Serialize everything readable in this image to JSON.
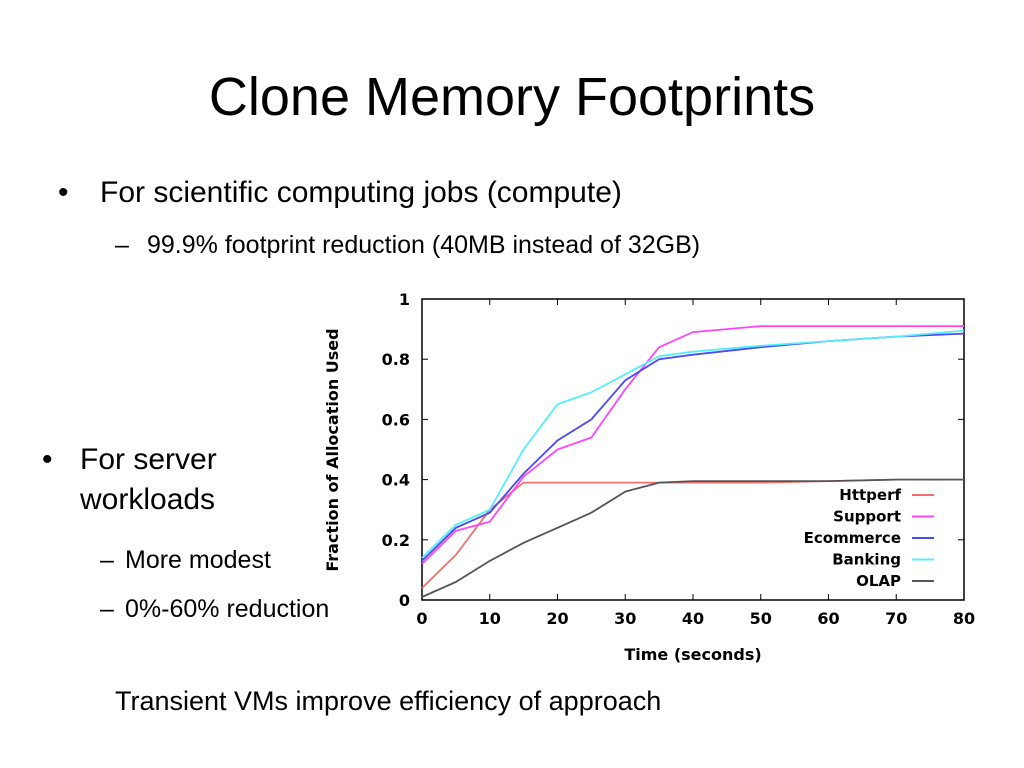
{
  "slide": {
    "title": "Clone Memory Footprints",
    "bullet1": "For scientific computing jobs (compute)",
    "sub1": "99.9% footprint reduction (40MB instead of 32GB)",
    "bullet2": "For server workloads",
    "sub2": "More modest",
    "sub3": "0%-60% reduction",
    "footer": "Transient VMs improve efficiency of approach",
    "bullet_glyph": "•",
    "dash_glyph": "–"
  },
  "chart_data": {
    "type": "line",
    "title": "",
    "xlabel": "Time (seconds)",
    "ylabel": "Fraction of Allocation Used",
    "xlim": [
      0,
      80
    ],
    "ylim": [
      0,
      1
    ],
    "xticks": [
      "0",
      "10",
      "20",
      "30",
      "40",
      "50",
      "60",
      "70",
      "80"
    ],
    "yticks": [
      "0",
      "0.2",
      "0.4",
      "0.6",
      "0.8",
      "1"
    ],
    "legend_position": "bottom-right",
    "grid": false,
    "series": [
      {
        "name": "Httperf",
        "color": "#f07070",
        "points": [
          [
            0,
            0.04
          ],
          [
            5,
            0.15
          ],
          [
            10,
            0.3
          ],
          [
            15,
            0.39
          ],
          [
            20,
            0.39
          ],
          [
            30,
            0.39
          ],
          [
            40,
            0.39
          ],
          [
            50,
            0.39
          ],
          [
            60,
            0.395
          ],
          [
            70,
            0.4
          ],
          [
            80,
            0.4
          ]
        ]
      },
      {
        "name": "Support",
        "color": "#ff44ff",
        "points": [
          [
            0,
            0.12
          ],
          [
            5,
            0.23
          ],
          [
            10,
            0.26
          ],
          [
            15,
            0.41
          ],
          [
            20,
            0.5
          ],
          [
            25,
            0.54
          ],
          [
            30,
            0.7
          ],
          [
            35,
            0.84
          ],
          [
            40,
            0.89
          ],
          [
            50,
            0.91
          ],
          [
            60,
            0.91
          ],
          [
            70,
            0.91
          ],
          [
            80,
            0.91
          ]
        ]
      },
      {
        "name": "Ecommerce",
        "color": "#4b4bf0",
        "points": [
          [
            0,
            0.13
          ],
          [
            5,
            0.24
          ],
          [
            10,
            0.29
          ],
          [
            15,
            0.42
          ],
          [
            20,
            0.53
          ],
          [
            25,
            0.6
          ],
          [
            30,
            0.73
          ],
          [
            35,
            0.8
          ],
          [
            40,
            0.815
          ],
          [
            50,
            0.84
          ],
          [
            60,
            0.86
          ],
          [
            70,
            0.875
          ],
          [
            80,
            0.885
          ]
        ]
      },
      {
        "name": "Banking",
        "color": "#55eeff",
        "points": [
          [
            0,
            0.14
          ],
          [
            5,
            0.25
          ],
          [
            10,
            0.3
          ],
          [
            15,
            0.5
          ],
          [
            20,
            0.65
          ],
          [
            25,
            0.69
          ],
          [
            30,
            0.75
          ],
          [
            35,
            0.81
          ],
          [
            40,
            0.825
          ],
          [
            50,
            0.845
          ],
          [
            60,
            0.86
          ],
          [
            70,
            0.875
          ],
          [
            80,
            0.895
          ]
        ]
      },
      {
        "name": "OLAP",
        "color": "#555555",
        "points": [
          [
            0,
            0.01
          ],
          [
            5,
            0.06
          ],
          [
            10,
            0.13
          ],
          [
            15,
            0.19
          ],
          [
            20,
            0.24
          ],
          [
            25,
            0.29
          ],
          [
            30,
            0.36
          ],
          [
            35,
            0.39
          ],
          [
            40,
            0.395
          ],
          [
            50,
            0.395
          ],
          [
            60,
            0.395
          ],
          [
            70,
            0.4
          ],
          [
            80,
            0.4
          ]
        ]
      }
    ]
  }
}
